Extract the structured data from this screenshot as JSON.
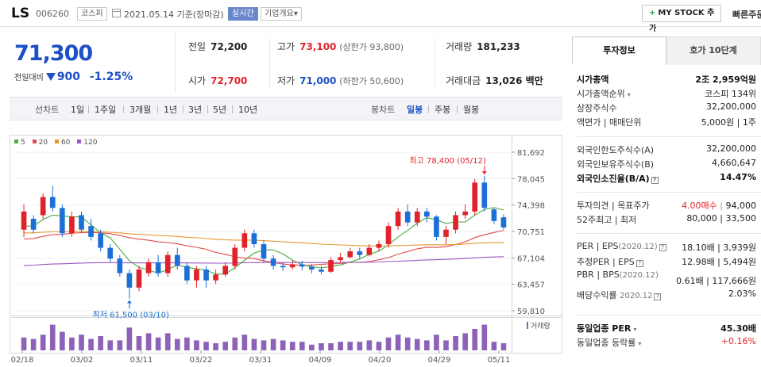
{
  "header": {
    "stock_name": "LS",
    "stock_code": "006260",
    "market_badge": "코스피",
    "date_text": "2021.05.14 기준(장마감)",
    "realtime_badge": "실시간",
    "company_badge": "기업개요",
    "company_badge_arrow": "▾",
    "mystock_button": "MY STOCK 추가",
    "mystock_plus": "+",
    "quick_button": "빠른주문"
  },
  "price": {
    "current": "71,300",
    "change_label": "전일대비",
    "change_amount": "900",
    "change_rate": "-1.25%",
    "direction_color": "#1c50c6"
  },
  "summary": {
    "prev_close_label": "전일",
    "prev_close": "72,200",
    "high_label": "고가",
    "high": "73,100",
    "upper_limit": "(상한가 93,800)",
    "volume_label": "거래량",
    "volume": "181,233",
    "open_label": "시가",
    "open": "72,700",
    "low_label": "저가",
    "low": "71,000",
    "lower_limit": "(하한가 50,600)",
    "amount_label": "거래대금",
    "amount": "13,026 백만"
  },
  "period_bar": {
    "label": "선차트",
    "periods": [
      "1일",
      "1주일",
      "3개월",
      "1년",
      "3년",
      "5년",
      "10년"
    ],
    "candle_label": "봉차트",
    "candles": [
      "일봉",
      "주봉",
      "월봉"
    ],
    "active_candle": "일봉"
  },
  "chart_data": {
    "type": "candlestick",
    "legend": [
      {
        "name": "5",
        "color": "#4aab3f"
      },
      {
        "name": "20",
        "color": "#e04a4a"
      },
      {
        "name": "60",
        "color": "#e8972e"
      },
      {
        "name": "120",
        "color": "#9b56c4"
      }
    ],
    "y_ticks": [
      "81,692",
      "78,045",
      "74,398",
      "70,751",
      "67,104",
      "63,457",
      "59,810"
    ],
    "ylim": [
      59810,
      81692
    ],
    "x_ticks": [
      "02/18",
      "03/02",
      "03/11",
      "03/22",
      "03/31",
      "04/09",
      "04/20",
      "04/29",
      "05/11"
    ],
    "high_annotation": "최고 78,400 (05/12)",
    "low_annotation": "최저 61,500 (03/10)",
    "volume_label": "거래량",
    "up_color": "#e0232b",
    "down_color": "#1c6fd6",
    "candles": [
      {
        "o": 71000,
        "c": 73500,
        "h": 74500,
        "l": 70000
      },
      {
        "o": 72500,
        "c": 71000,
        "h": 73000,
        "l": 70500
      },
      {
        "o": 73000,
        "c": 75500,
        "h": 76000,
        "l": 72500
      },
      {
        "o": 75500,
        "c": 74000,
        "h": 77000,
        "l": 73500
      },
      {
        "o": 74000,
        "c": 70500,
        "h": 74500,
        "l": 70000
      },
      {
        "o": 70500,
        "c": 72800,
        "h": 73500,
        "l": 70000
      },
      {
        "o": 73000,
        "c": 71000,
        "h": 73500,
        "l": 70500
      },
      {
        "o": 71500,
        "c": 70000,
        "h": 72500,
        "l": 69500
      },
      {
        "o": 70500,
        "c": 68500,
        "h": 71000,
        "l": 68000
      },
      {
        "o": 68500,
        "c": 67000,
        "h": 69000,
        "l": 66500
      },
      {
        "o": 67000,
        "c": 65000,
        "h": 67500,
        "l": 64500
      },
      {
        "o": 65000,
        "c": 63000,
        "h": 65500,
        "l": 61500
      },
      {
        "o": 63000,
        "c": 65500,
        "h": 66000,
        "l": 62500
      },
      {
        "o": 65000,
        "c": 66500,
        "h": 67000,
        "l": 64500
      },
      {
        "o": 66500,
        "c": 65000,
        "h": 67500,
        "l": 64500
      },
      {
        "o": 65000,
        "c": 67500,
        "h": 68000,
        "l": 64500
      },
      {
        "o": 67500,
        "c": 66000,
        "h": 68500,
        "l": 65500
      },
      {
        "o": 66000,
        "c": 64000,
        "h": 66500,
        "l": 63500
      },
      {
        "o": 64000,
        "c": 65500,
        "h": 66000,
        "l": 63000
      },
      {
        "o": 65500,
        "c": 64000,
        "h": 66000,
        "l": 63000
      },
      {
        "o": 64000,
        "c": 64800,
        "h": 65500,
        "l": 63500
      },
      {
        "o": 64800,
        "c": 66000,
        "h": 66500,
        "l": 64500
      },
      {
        "o": 66000,
        "c": 68500,
        "h": 69000,
        "l": 65500
      },
      {
        "o": 68500,
        "c": 70500,
        "h": 71000,
        "l": 68000
      },
      {
        "o": 70500,
        "c": 69000,
        "h": 71000,
        "l": 68500
      },
      {
        "o": 69000,
        "c": 67000,
        "h": 69500,
        "l": 66500
      },
      {
        "o": 67000,
        "c": 66000,
        "h": 67500,
        "l": 65500
      },
      {
        "o": 66000,
        "c": 65800,
        "h": 66500,
        "l": 65300
      },
      {
        "o": 65800,
        "c": 66200,
        "h": 66800,
        "l": 65500
      },
      {
        "o": 66200,
        "c": 65900,
        "h": 66700,
        "l": 65400
      },
      {
        "o": 65900,
        "c": 65500,
        "h": 66300,
        "l": 65000
      },
      {
        "o": 65500,
        "c": 65200,
        "h": 66000,
        "l": 64800
      },
      {
        "o": 65200,
        "c": 66800,
        "h": 67200,
        "l": 65000
      },
      {
        "o": 66800,
        "c": 67200,
        "h": 67800,
        "l": 66500
      },
      {
        "o": 67200,
        "c": 68000,
        "h": 68500,
        "l": 67000
      },
      {
        "o": 68000,
        "c": 67500,
        "h": 68500,
        "l": 67000
      },
      {
        "o": 67500,
        "c": 68500,
        "h": 69000,
        "l": 67300
      },
      {
        "o": 68500,
        "c": 69000,
        "h": 69500,
        "l": 68000
      },
      {
        "o": 69000,
        "c": 71500,
        "h": 72000,
        "l": 68500
      },
      {
        "o": 71500,
        "c": 73500,
        "h": 74000,
        "l": 71000
      },
      {
        "o": 73500,
        "c": 72000,
        "h": 74500,
        "l": 71500
      },
      {
        "o": 72000,
        "c": 73500,
        "h": 74000,
        "l": 71500
      },
      {
        "o": 73500,
        "c": 72800,
        "h": 74000,
        "l": 72000
      },
      {
        "o": 72800,
        "c": 70000,
        "h": 73000,
        "l": 69500
      },
      {
        "o": 70000,
        "c": 71000,
        "h": 71500,
        "l": 69000
      },
      {
        "o": 71000,
        "c": 73000,
        "h": 73500,
        "l": 70500
      },
      {
        "o": 73000,
        "c": 73500,
        "h": 74500,
        "l": 72500
      },
      {
        "o": 73500,
        "c": 77500,
        "h": 78000,
        "l": 73000
      },
      {
        "o": 77500,
        "c": 74000,
        "h": 78400,
        "l": 73500
      },
      {
        "o": 73800,
        "c": 72200,
        "h": 74000,
        "l": 71800
      },
      {
        "o": 72700,
        "c": 71300,
        "h": 73100,
        "l": 71000
      }
    ],
    "volumes": [
      0.45,
      0.4,
      0.55,
      0.9,
      0.65,
      0.45,
      0.55,
      0.4,
      0.5,
      0.35,
      0.35,
      0.8,
      0.5,
      0.6,
      0.45,
      0.6,
      0.4,
      0.45,
      0.35,
      0.3,
      0.25,
      0.3,
      0.45,
      0.55,
      0.4,
      0.35,
      0.4,
      0.35,
      0.3,
      0.3,
      0.2,
      0.25,
      0.25,
      0.3,
      0.3,
      0.3,
      0.35,
      0.3,
      0.45,
      0.55,
      0.45,
      0.4,
      0.35,
      0.55,
      0.35,
      0.5,
      0.6,
      0.75,
      0.9,
      0.3,
      0.25
    ]
  },
  "side": {
    "tab_active": "투자정보",
    "tab_other": "호가 10단계",
    "rows1": [
      {
        "k": "시가총액",
        "v": "2조 2,959억원",
        "bold": true
      },
      {
        "k": "시가총액순위",
        "v": "코스피 134위",
        "arrow": "▾"
      },
      {
        "k": "상장주식수",
        "v": "32,200,000"
      },
      {
        "k": "액면가 | 매매단위",
        "v": "5,000원 | 1주"
      }
    ],
    "rows2": [
      {
        "k": "외국인한도주식수(A)",
        "v": "32,200,000"
      },
      {
        "k": "외국인보유주식수(B)",
        "v": "4,660,647"
      },
      {
        "k": "외국인소진율(B/A)",
        "v": "14.47%",
        "bold": true,
        "help": "?"
      }
    ],
    "target_k": "투자의견 | 목표주가",
    "target_opinion": "4.00매수",
    "target_sep": "|",
    "target_price": "94,000",
    "week52_k": "52주최고 | 최저",
    "week52_v": "80,000 | 33,500",
    "per_k": "PER | EPS",
    "per_sub": "(2020.12)",
    "per_v": "18.10배 | 3,939원",
    "est_k": "추정PER | EPS",
    "est_v": "12.98배 | 5,494원",
    "pbr_k": "PBR | BPS",
    "pbr_sub": "(2020.12)",
    "pbr_v": "0.61배 | 117,666원",
    "div_k": "배당수익률",
    "div_sub": "2020.12",
    "div_v": "2.03%",
    "help": "?",
    "sector_per_k": "동일업종 PER",
    "sector_per_v": "45.30배",
    "sector_rate_k": "동일업종 등락률",
    "sector_rate_v": "+0.16%"
  }
}
